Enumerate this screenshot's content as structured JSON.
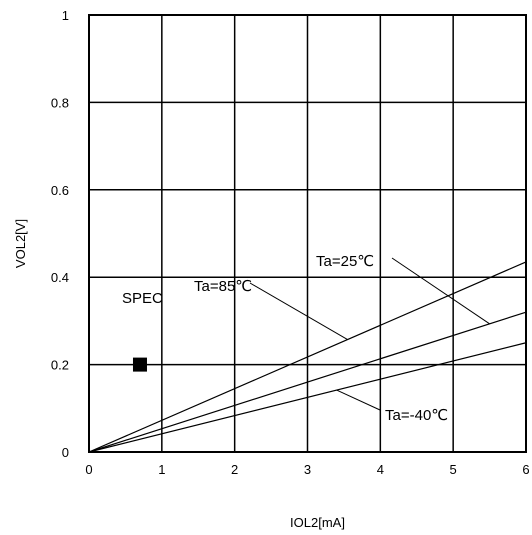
{
  "chart_data": {
    "type": "line",
    "xlabel": "IOL2[mA]",
    "ylabel": "VOL2[V]",
    "xlim": [
      0,
      6
    ],
    "ylim": [
      0,
      1
    ],
    "x_ticks": [
      "0",
      "1",
      "2",
      "3",
      "4",
      "5",
      "6"
    ],
    "y_ticks": [
      "0",
      "0.2",
      "0.4",
      "0.6",
      "0.8",
      "1"
    ],
    "grid": true,
    "series": [
      {
        "name": "Ta=85℃",
        "x": [
          0,
          6
        ],
        "y": [
          0,
          0.435
        ]
      },
      {
        "name": "Ta=25℃",
        "x": [
          0,
          6
        ],
        "y": [
          0,
          0.32
        ]
      },
      {
        "name": "Ta=-40℃",
        "x": [
          0,
          6
        ],
        "y": [
          0,
          0.25
        ]
      }
    ],
    "annotations": [
      {
        "text": "Ta=25℃",
        "target_series": 1,
        "target_x": 5.5
      },
      {
        "text": "Ta=85℃",
        "target_series": 0,
        "target_x": 3.55
      },
      {
        "text": "Ta=-40℃",
        "target_series": 2,
        "target_x": 3.4
      }
    ],
    "spec": {
      "label": "SPEC",
      "x": 0.7,
      "y": 0.2
    }
  }
}
